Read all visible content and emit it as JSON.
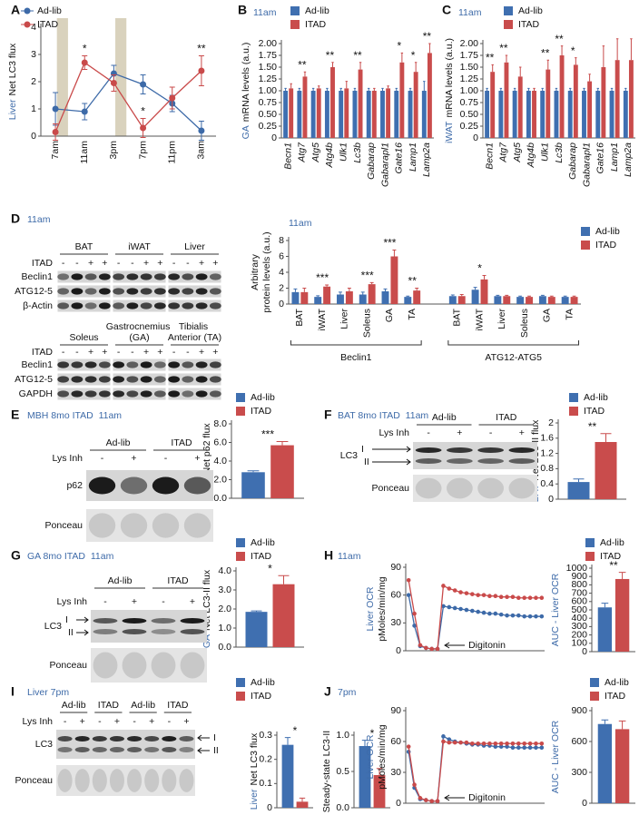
{
  "panel_labels": [
    "A",
    "B",
    "C",
    "D",
    "E",
    "F",
    "G",
    "H",
    "I",
    "J"
  ],
  "chart_data": [
    {
      "type": "line",
      "y_label_prefix": "Liver",
      "y_label": "Net LC3 flux",
      "categories": [
        "7am",
        "11am",
        "3pm",
        "7pm",
        "11pm",
        "3am"
      ],
      "ylim": [
        0,
        4
      ],
      "yticks": [
        0,
        1,
        2,
        3,
        4
      ],
      "annotations": [
        null,
        "*",
        null,
        "*",
        null,
        "**"
      ],
      "series": [
        {
          "name": "Ad-lib",
          "color": "#3d6aa8",
          "values": [
            1.0,
            0.9,
            2.3,
            1.9,
            1.2,
            0.2
          ],
          "errors": [
            0.6,
            0.3,
            0.3,
            0.35,
            0.3,
            0.35
          ]
        },
        {
          "name": "ITAD",
          "color": "#c94a4a",
          "values": [
            0.15,
            2.7,
            1.95,
            0.3,
            1.4,
            2.4
          ],
          "errors": [
            0.3,
            0.25,
            0.3,
            0.35,
            0.4,
            0.55
          ]
        }
      ]
    },
    {
      "type": "bar",
      "title": "11am",
      "y_label_prefix": "GA",
      "y_label": "mRNA levels (a.u.)",
      "categories": [
        "Becn1",
        "Atg7",
        "Atg5",
        "Atg4b",
        "Ulk1",
        "Lc3b",
        "Gabarap",
        "Gabarapl1",
        "Gate16",
        "Lamp1",
        "Lamp2a"
      ],
      "ylim": [
        0,
        2
      ],
      "yticks": [
        0,
        0.25,
        {
          "value": 0.5,
          "label": "0.50"
        },
        0.75,
        {
          "value": 1,
          "label": "1.00"
        },
        1.25,
        {
          "value": 1.5,
          "label": "1.50"
        },
        1.75,
        {
          "value": 2,
          "label": "2.00"
        }
      ],
      "annotations": [
        null,
        "**",
        null,
        "**",
        null,
        "**",
        null,
        null,
        "*",
        "*",
        "**"
      ],
      "series": [
        {
          "name": "Ad-lib",
          "color": "#3f6fb0",
          "values": [
            1,
            1,
            1,
            1,
            1,
            1,
            1,
            1,
            1,
            1,
            1
          ],
          "errors": [
            0.05,
            0.05,
            0.05,
            0.05,
            0.05,
            0.05,
            0.05,
            0.05,
            0.05,
            0.05,
            0.2
          ]
        },
        {
          "name": "ITAD",
          "color": "#c94c4c",
          "values": [
            1.05,
            1.3,
            1.05,
            1.5,
            1.05,
            1.45,
            1.0,
            1.05,
            1.6,
            1.4,
            1.8
          ],
          "errors": [
            0.1,
            0.1,
            0.05,
            0.1,
            0.15,
            0.15,
            0.05,
            0.05,
            0.2,
            0.2,
            0.2
          ]
        }
      ]
    },
    {
      "type": "bar",
      "title": "11am",
      "y_label_prefix": "iWAT",
      "y_label": "mRNA levels (a.u.)",
      "categories": [
        "Becn1",
        "Atg7",
        "Atg5",
        "Atg4b",
        "Ulk1",
        "Lc3b",
        "Gabarap",
        "Gabarapl1",
        "Gate16",
        "Lamp1",
        "Lamp2a"
      ],
      "ylim": [
        0,
        2
      ],
      "yticks": [
        0,
        0.25,
        {
          "value": 0.5,
          "label": "0.50"
        },
        0.75,
        {
          "value": 1,
          "label": "1.00"
        },
        1.25,
        {
          "value": 1.5,
          "label": "1.50"
        },
        1.75,
        {
          "value": 2,
          "label": "2.00"
        }
      ],
      "annotations": [
        "**",
        "**",
        null,
        null,
        "**",
        "**",
        "*",
        null,
        null,
        null,
        null
      ],
      "series": [
        {
          "name": "Ad-lib",
          "color": "#3f6fb0",
          "values": [
            1,
            1,
            1,
            1,
            1,
            1,
            1,
            1,
            1,
            1,
            1
          ],
          "errors": [
            0.05,
            0.05,
            0.05,
            0.05,
            0.05,
            0.05,
            0.05,
            0.05,
            0.05,
            0.05,
            0.05
          ]
        },
        {
          "name": "ITAD",
          "color": "#c94c4c",
          "values": [
            1.4,
            1.6,
            1.3,
            1.0,
            1.45,
            1.75,
            1.55,
            1.2,
            1.5,
            1.65,
            1.65
          ],
          "errors": [
            0.15,
            0.15,
            0.2,
            0.05,
            0.2,
            0.2,
            0.15,
            0.15,
            0.45,
            0.45,
            0.45
          ]
        }
      ]
    },
    {
      "type": "bar",
      "title": "11am",
      "y_label": [
        "Arbitrary",
        "protein levels (a.u.)"
      ],
      "categories": [
        "BAT",
        "iWAT",
        "Liver",
        "Soleus",
        "GA",
        "TA",
        "BAT",
        "iWAT",
        "Liver",
        "Soleus",
        "GA",
        "TA"
      ],
      "groups": [
        "Beclin1",
        "ATG12-ATG5"
      ],
      "ylim": [
        0,
        8
      ],
      "yticks": [
        0,
        2,
        4,
        6,
        8
      ],
      "annotations": [
        null,
        "***",
        null,
        "***",
        "***",
        "**",
        null,
        "*",
        null,
        null,
        null,
        null
      ],
      "series": [
        {
          "name": "Ad-lib",
          "color": "#3f6fb0",
          "values": [
            1.5,
            0.9,
            1.2,
            1.2,
            1.6,
            0.9,
            1.0,
            1.8,
            1.0,
            0.9,
            1.0,
            0.9
          ],
          "errors": [
            0.4,
            0.15,
            0.3,
            0.3,
            0.3,
            0.1,
            0.15,
            0.3,
            0.1,
            0.1,
            0.1,
            0.1
          ]
        },
        {
          "name": "ITAD",
          "color": "#c94c4c",
          "values": [
            1.5,
            2.2,
            1.6,
            2.5,
            6.0,
            1.7,
            1.0,
            3.1,
            1.0,
            0.9,
            0.9,
            0.9
          ],
          "errors": [
            0.5,
            0.2,
            0.4,
            0.2,
            0.8,
            0.3,
            0.2,
            0.5,
            0.1,
            0.1,
            0.1,
            0.1
          ]
        }
      ]
    },
    {
      "type": "bar",
      "y_label_prefix": "MBH",
      "y_label": "Net p62 flux",
      "ylim": [
        0,
        8
      ],
      "yticks": [
        {
          "value": 0,
          "label": "0.0"
        },
        {
          "value": 2,
          "label": "2.0"
        },
        {
          "value": 4,
          "label": "4.0"
        },
        {
          "value": 6,
          "label": "6.0"
        },
        {
          "value": 8,
          "label": "8.0"
        }
      ],
      "annotations": [
        "***"
      ],
      "series": [
        {
          "name": "Ad-lib",
          "color": "#3f6fb0",
          "values": [
            2.8
          ],
          "errors": [
            0.15
          ]
        },
        {
          "name": "ITAD",
          "color": "#c94c4c",
          "values": [
            5.7
          ],
          "errors": [
            0.4
          ]
        }
      ]
    },
    {
      "type": "bar",
      "y_label_prefix": "BAT",
      "y_label": "Net LC3-II flux",
      "ylim": [
        0,
        2
      ],
      "yticks": [
        0,
        0.4,
        0.8,
        1.2,
        1.6,
        2
      ],
      "annotations": [
        "**"
      ],
      "series": [
        {
          "name": "Ad-lib",
          "color": "#3f6fb0",
          "values": [
            0.45
          ],
          "errors": [
            0.08
          ]
        },
        {
          "name": "ITAD",
          "color": "#c94c4c",
          "values": [
            1.5
          ],
          "errors": [
            0.22
          ]
        }
      ]
    },
    {
      "type": "bar",
      "y_label_prefix": "GA",
      "y_label": "Net LC3-II flux",
      "ylim": [
        0,
        4
      ],
      "yticks": [
        {
          "value": 0,
          "label": "0.0"
        },
        {
          "value": 1,
          "label": "1.0"
        },
        {
          "value": 2,
          "label": "2.0"
        },
        {
          "value": 3,
          "label": "3.0"
        },
        {
          "value": 4,
          "label": "4.0"
        }
      ],
      "annotations": [
        "*"
      ],
      "series": [
        {
          "name": "Ad-lib",
          "color": "#3f6fb0",
          "values": [
            1.85
          ],
          "errors": [
            0.05
          ]
        },
        {
          "name": "ITAD",
          "color": "#c94c4c",
          "values": [
            3.3
          ],
          "errors": [
            0.45
          ]
        }
      ]
    },
    {
      "type": "line",
      "title": "11am",
      "y_label_prefix": "Liver OCR",
      "y_label": "pMoles/min/mg",
      "annotation": "Digitonin",
      "ylim": [
        0,
        90
      ],
      "yticks": [
        0,
        30,
        60,
        90
      ],
      "series": [
        {
          "color": "#3d6aa8",
          "values": [
            60,
            27,
            5,
            3,
            2,
            2,
            48,
            47,
            46,
            45,
            44,
            43,
            42,
            41,
            40,
            40,
            39,
            38,
            38,
            38,
            37,
            37,
            37,
            37
          ]
        },
        {
          "color": "#c94a4a",
          "values": [
            76,
            40,
            6,
            3,
            2,
            2,
            70,
            67,
            65,
            63,
            62,
            61,
            60,
            60,
            59,
            59,
            58,
            58,
            58,
            57,
            57,
            57,
            57,
            57
          ]
        }
      ]
    },
    {
      "type": "bar",
      "y_label_prefix": "AUC - Liver OCR",
      "ylim": [
        0,
        1000
      ],
      "yticks": [
        0,
        100,
        200,
        300,
        400,
        500,
        600,
        700,
        800,
        900,
        1000
      ],
      "annotations": [
        "**"
      ],
      "series": [
        {
          "name": "Ad-lib",
          "color": "#3f6fb0",
          "values": [
            530
          ],
          "errors": [
            50
          ]
        },
        {
          "name": "ITAD",
          "color": "#c94c4c",
          "values": [
            870
          ],
          "errors": [
            80
          ]
        }
      ]
    },
    {
      "type": "bar",
      "y_label_prefix": "Liver",
      "y_label": "Net LC3 flux",
      "ylim": [
        0,
        0.3
      ],
      "yticks": [
        0,
        0.1,
        0.2,
        0.3
      ],
      "annotations": [
        "*"
      ],
      "series": [
        {
          "name": "Ad-lib",
          "color": "#3f6fb0",
          "values": [
            0.26
          ],
          "errors": [
            0.03
          ]
        },
        {
          "name": "ITAD",
          "color": "#c94c4c",
          "values": [
            0.025
          ],
          "errors": [
            0.015
          ]
        }
      ]
    },
    {
      "type": "bar",
      "y_label": "Steady-state LC3-II",
      "ylim": [
        0,
        1
      ],
      "yticks": [
        {
          "value": 0,
          "label": "0.0"
        },
        {
          "value": 0.5,
          "label": "0.5"
        },
        {
          "value": 1,
          "label": "1.0"
        }
      ],
      "annotations": [
        "*"
      ],
      "series": [
        {
          "color": "#3f6fb0",
          "values": [
            0.85
          ],
          "errors": [
            0.08
          ]
        },
        {
          "color": "#c94c4c",
          "values": [
            0.45
          ],
          "errors": [
            0.09
          ]
        }
      ]
    },
    {
      "type": "line",
      "title": "7pm",
      "y_label_prefix": "Liver OCR",
      "y_label": "pMoles/min/mg",
      "annotation": "Digitonin",
      "ylim": [
        0,
        90
      ],
      "yticks": [
        0,
        30,
        60,
        90
      ],
      "series": [
        {
          "color": "#3d6aa8",
          "values": [
            50,
            15,
            4,
            3,
            2,
            2,
            65,
            62,
            60,
            59,
            58,
            57,
            57,
            56,
            56,
            55,
            55,
            55,
            54,
            54,
            54,
            54,
            54,
            54
          ]
        },
        {
          "color": "#c94a4a",
          "values": [
            55,
            18,
            5,
            3,
            2,
            2,
            60,
            59,
            59,
            59,
            59,
            58,
            58,
            58,
            58,
            58,
            58,
            58,
            58,
            58,
            58,
            58,
            58,
            58
          ]
        }
      ]
    },
    {
      "type": "bar",
      "y_label_prefix": "AUC - Liver OCR",
      "ylim": [
        0,
        900
      ],
      "yticks": [
        0,
        300,
        600,
        900
      ],
      "series": [
        {
          "name": "Ad-lib",
          "color": "#3f6fb0",
          "values": [
            770
          ],
          "errors": [
            40
          ]
        },
        {
          "name": "ITAD",
          "color": "#c94c4c",
          "values": [
            720
          ],
          "errors": [
            80
          ]
        }
      ]
    }
  ],
  "blots": [
    {
      "title": "11am",
      "headers": [
        "BAT",
        "iWAT",
        "Liver"
      ],
      "lane_label": "ITAD",
      "lanes": [
        "-",
        "-",
        "+",
        "+",
        "-",
        "-",
        "+",
        "+",
        "-",
        "-",
        "+",
        "+"
      ],
      "rows": [
        {
          "name": "Beclin1"
        },
        {
          "name": "ATG12-5"
        },
        {
          "name": "β-Actin"
        }
      ]
    },
    {
      "headers": [
        "Soleus",
        "Gastrocnemius (GA)",
        "Tibialis Anterior (TA)"
      ],
      "lane_label": "ITAD",
      "lanes": [
        "-",
        "-",
        "+",
        "+",
        "-",
        "-",
        "+",
        "+",
        "-",
        "-",
        "+",
        "+"
      ],
      "rows": [
        {
          "name": "Beclin1"
        },
        {
          "name": "ATG12-5"
        },
        {
          "name": "GAPDH"
        }
      ]
    },
    {
      "title": "MBH 8mo ITAD  11am",
      "groups": [
        "Ad-lib",
        "ITAD"
      ],
      "lane_label": "Lys Inh",
      "lanes": [
        "-",
        "+",
        "-",
        "+"
      ],
      "rows": [
        {
          "name": "p62"
        },
        {
          "name": "Ponceau"
        }
      ]
    },
    {
      "title": "BAT 8mo ITAD  11am",
      "groups": [
        "Ad-lib",
        "ITAD"
      ],
      "lane_label": "Lys Inh",
      "lanes": [
        "-",
        "+",
        "-",
        "+"
      ],
      "rows": [
        {
          "name": "LC3",
          "marks": [
            "I",
            "II"
          ]
        },
        {
          "name": "Ponceau"
        }
      ]
    },
    {
      "title": "GA 8mo ITAD  11am",
      "groups": [
        "Ad-lib",
        "ITAD"
      ],
      "lane_label": "Lys Inh",
      "lanes": [
        "-",
        "+",
        "-",
        "+"
      ],
      "rows": [
        {
          "name": "LC3",
          "marks": [
            "I",
            "II"
          ]
        },
        {
          "name": "Ponceau"
        }
      ]
    },
    {
      "title": "Liver 7pm",
      "groups": [
        "Ad-lib",
        "ITAD",
        "Ad-lib",
        "ITAD"
      ],
      "lane_label": "Lys Inh",
      "lanes": [
        "-",
        "+",
        "-",
        "+",
        "-",
        "+",
        "-",
        "+"
      ],
      "rows": [
        {
          "name": "LC3",
          "marks": [
            "I",
            "II"
          ]
        },
        {
          "name": "Ponceau"
        }
      ]
    }
  ]
}
